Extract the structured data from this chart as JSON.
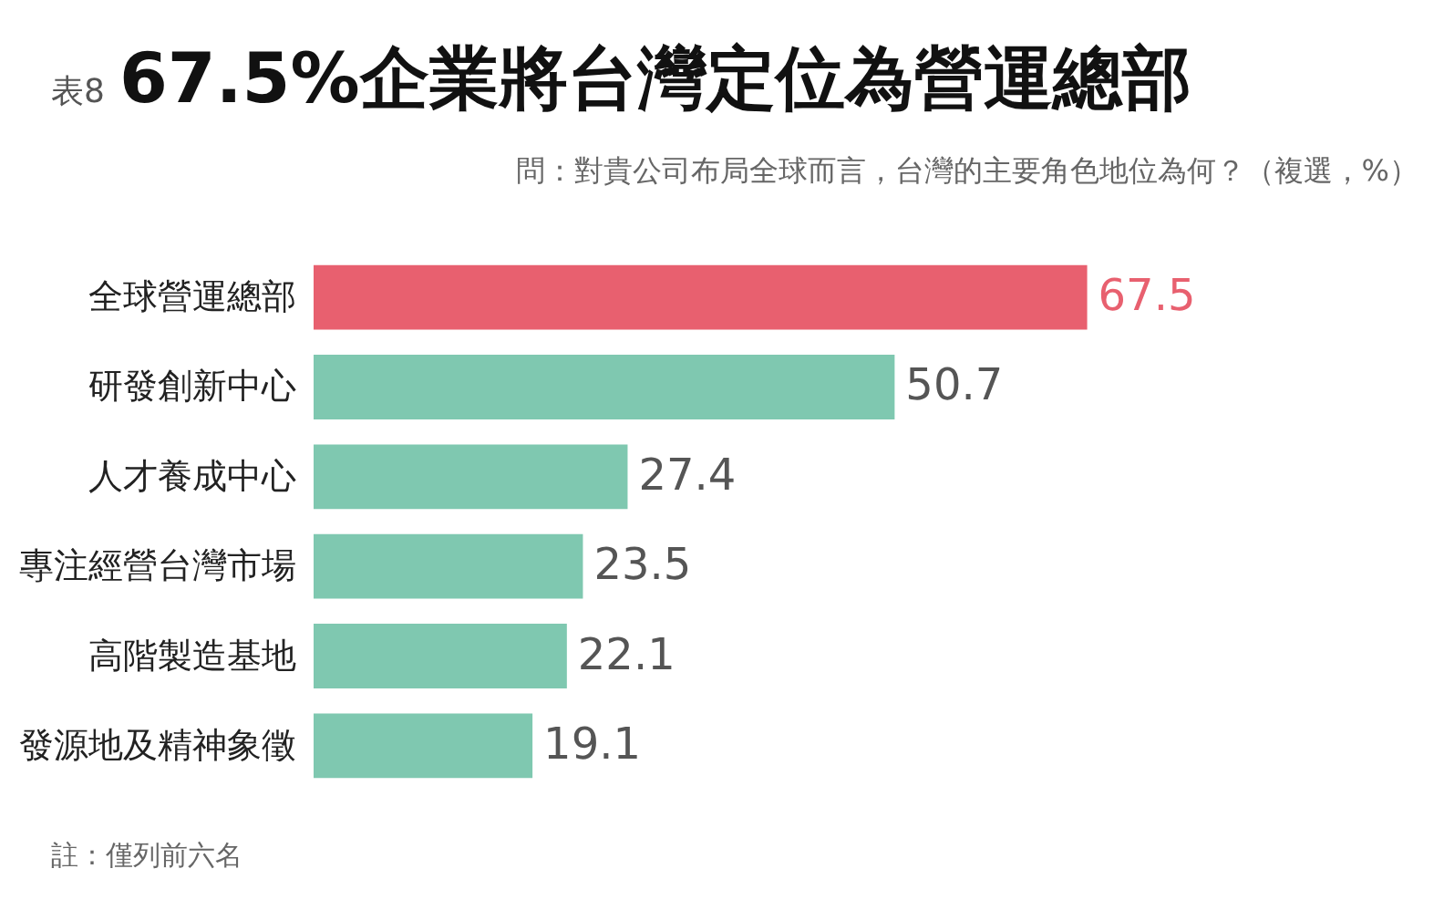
{
  "chart_data": {
    "type": "bar",
    "orientation": "horizontal",
    "title": "67.5%企業將台灣定位為營運總部",
    "subtitle": "問：對貴公司布局全球而言，台灣的主要角色地位為何？（複選，%）",
    "annotations": [
      "表8",
      "註：僅列前六名"
    ],
    "categories": [
      "全球營運總部",
      "研發創新中心",
      "人才養成中心",
      "專注經營台灣市場",
      "高階製造基地",
      "發源地及精神象徵"
    ],
    "values": [
      67.5,
      50.7,
      27.4,
      23.5,
      22.1,
      19.1
    ],
    "colors": [
      "#e8606f",
      "#7fc8b0",
      "#7fc8b0",
      "#7fc8b0",
      "#7fc8b0",
      "#7fc8b0"
    ],
    "data_labels": true,
    "grid": false
  }
}
